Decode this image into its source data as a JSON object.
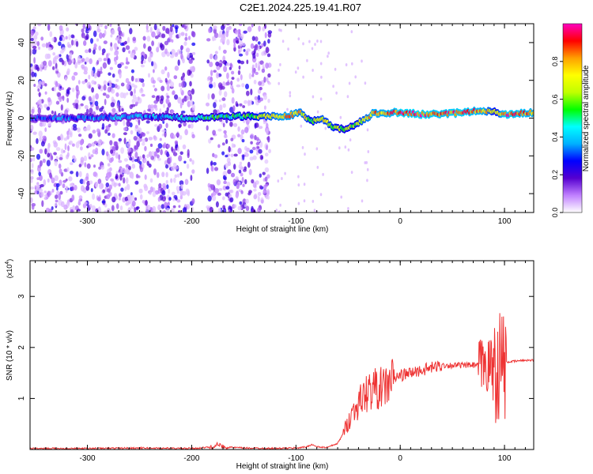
{
  "title": "C2E1.2024.225.19.41.R07",
  "chart_data": [
    {
      "type": "heatmap",
      "title": "",
      "xlabel": "Height of straight line (km)",
      "ylabel": "Frequency (Hz)",
      "xlim": [
        -355,
        128
      ],
      "ylim": [
        -50,
        50
      ],
      "x_ticks": [
        -300,
        -200,
        -100,
        0,
        100
      ],
      "x_tick_labels": [
        "-300",
        "-200",
        "-100",
        "0",
        "100"
      ],
      "y_ticks": [
        -40,
        -20,
        0,
        20,
        40
      ],
      "y_tick_labels": [
        "-40",
        "-20",
        "0",
        "20",
        "40"
      ],
      "colorbar": {
        "label": "Normalized spectral amplitude",
        "range": [
          0,
          1
        ],
        "ticks": [
          0,
          0.2,
          0.4,
          0.6,
          0.8
        ],
        "tick_labels": [
          "0.0",
          "0.2",
          "0.4",
          "0.6",
          "0.8"
        ],
        "colors": [
          "#ffffff",
          "#c080ff",
          "#5500d0",
          "#0000ff",
          "#00b0ff",
          "#00ffff",
          "#00ff00",
          "#c0ff00",
          "#ffff00",
          "#ffa000",
          "#ff0000",
          "#ff00c0"
        ]
      },
      "ridge": {
        "x": [
          -355,
          -300,
          -250,
          -200,
          -150,
          -110,
          -95,
          -85,
          -75,
          -65,
          -55,
          -45,
          -35,
          -25,
          -15,
          -5,
          0,
          20,
          40,
          60,
          80,
          92,
          100,
          128
        ],
        "frequency": [
          0,
          0,
          1,
          0,
          1,
          1,
          3,
          -2,
          0,
          -5,
          -6,
          -4,
          -1,
          3,
          2,
          3,
          3,
          2,
          2,
          3,
          4,
          3,
          2,
          3
        ],
        "amplitude": [
          0.3,
          0.35,
          0.35,
          0.45,
          0.55,
          0.8,
          0.75,
          0.6,
          0.7,
          0.65,
          0.55,
          0.6,
          0.7,
          0.8,
          0.8,
          0.85,
          0.9,
          0.9,
          0.85,
          0.9,
          0.8,
          0.6,
          0.9,
          0.8
        ]
      },
      "noise_band_x": [
        -355,
        -125
      ],
      "grid": false
    },
    {
      "type": "line",
      "title": "",
      "xlabel": "Height of straight line (km)",
      "ylabel": "SNR (10 * v/v)",
      "y_multiplier": "(x10^4)",
      "y_multiplier_base": "(x10",
      "y_multiplier_exp": "4",
      "y_multiplier_tail": ")",
      "xlim": [
        -355,
        128
      ],
      "ylim": [
        0,
        3.7
      ],
      "x_ticks": [
        -300,
        -200,
        -100,
        0,
        100
      ],
      "x_tick_labels": [
        "-300",
        "-200",
        "-100",
        "0",
        "100"
      ],
      "y_ticks": [
        1,
        2,
        3
      ],
      "y_tick_labels": [
        "1",
        "2",
        "3"
      ],
      "series": [
        {
          "color": "#ee3333",
          "x": [
            -355,
            -300,
            -250,
            -200,
            -180,
            -175,
            -170,
            -150,
            -120,
            -100,
            -90,
            -85,
            -80,
            -70,
            -60,
            -55,
            -50,
            -45,
            -40,
            -35,
            -30,
            -25,
            -20,
            -15,
            -10,
            -5,
            0,
            10,
            20,
            30,
            40,
            50,
            60,
            70,
            80,
            85,
            90,
            95,
            98,
            100,
            105,
            110,
            120,
            128
          ],
          "y": [
            0.02,
            0.02,
            0.03,
            0.02,
            0.05,
            0.1,
            0.05,
            0.03,
            0.02,
            0.03,
            0.05,
            0.1,
            0.05,
            0.04,
            0.12,
            0.3,
            0.55,
            0.75,
            0.9,
            1.05,
            1.15,
            1.2,
            1.2,
            1.2,
            1.35,
            1.4,
            1.45,
            1.5,
            1.55,
            1.6,
            1.65,
            1.65,
            1.65,
            1.65,
            1.65,
            1.65,
            1.65,
            1.65,
            1.7,
            1.7,
            1.72,
            1.73,
            1.75,
            1.75
          ]
        }
      ],
      "grid": false
    }
  ]
}
